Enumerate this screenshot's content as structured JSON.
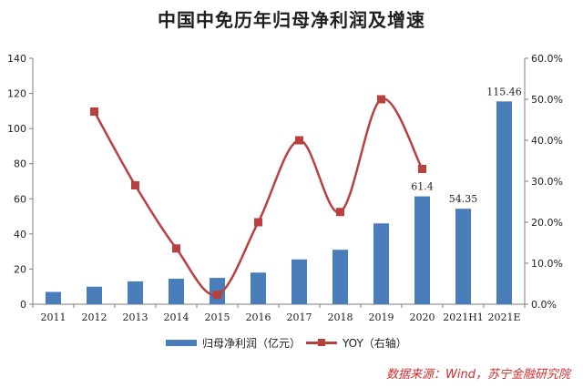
{
  "title": "中国中免历年归母净利润及增速",
  "source": "数据来源：Wind，苏宁金融研究院",
  "colors": {
    "bar": "#4a7ebb",
    "line": "#b9403f",
    "axis": "#7f7f7f",
    "text": "#222222",
    "source": "#d22b2b"
  },
  "chart_data": {
    "type": "bar",
    "categories": [
      "2011",
      "2012",
      "2013",
      "2014",
      "2015",
      "2016",
      "2017",
      "2018",
      "2019",
      "2020",
      "2021H1",
      "2021E"
    ],
    "series": [
      {
        "name": "归母净利润（亿元）",
        "type": "bar",
        "axis": "left",
        "values": [
          7,
          10,
          13,
          14.5,
          15,
          18,
          25.5,
          31,
          46,
          61.4,
          54.35,
          115.46
        ]
      },
      {
        "name": "YOY（右轴）",
        "type": "line",
        "axis": "right",
        "values": [
          null,
          0.47,
          0.29,
          0.136,
          0.023,
          0.2,
          0.4,
          0.225,
          0.5,
          0.33,
          null,
          null
        ]
      }
    ],
    "data_labels": [
      {
        "index": 9,
        "text": "61.4"
      },
      {
        "index": 10,
        "text": "54.35"
      },
      {
        "index": 11,
        "text": "115.46"
      }
    ],
    "y_left": {
      "min": 0,
      "max": 140,
      "ticks": [
        "0",
        "20",
        "40",
        "60",
        "80",
        "100",
        "120",
        "140"
      ]
    },
    "y_right": {
      "min": 0,
      "max": 0.6,
      "ticks": [
        "0.0%",
        "10.0%",
        "20.0%",
        "30.0%",
        "40.0%",
        "50.0%",
        "60.0%"
      ]
    },
    "legend_position": "bottom",
    "grid": false
  }
}
